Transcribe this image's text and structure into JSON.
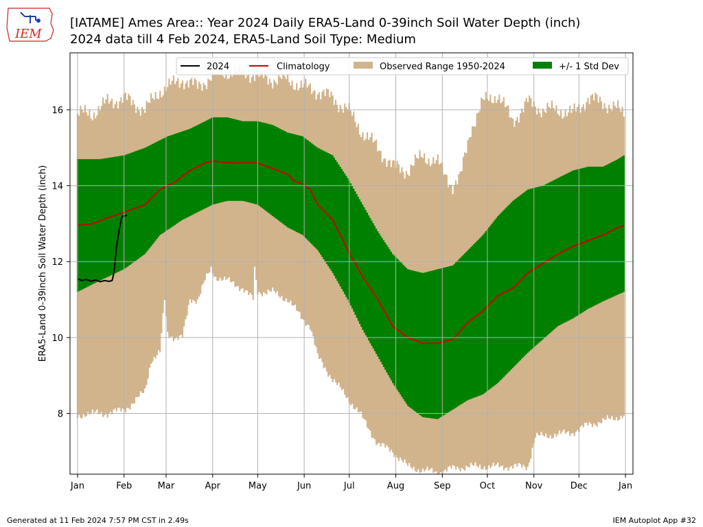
{
  "title_line1": "[IATAME] Ames Area:: Year 2024 Daily ERA5-Land 0-39inch Soil Water Depth (inch)",
  "title_line2": "2024 data till 4 Feb 2024, ERA5-Land Soil Type: Medium",
  "footer_left": "Generated at 11 Feb 2024 7:57 PM CST in 2.49s",
  "footer_right": "IEM Autoplot App #32",
  "logo_text": "IEM",
  "chart_data": {
    "type": "area",
    "ylabel": "ERA5-Land 0-39inch Soil Water Depth (inch)",
    "xlim": [
      -5,
      370
    ],
    "ylim": [
      6.4,
      17.5
    ],
    "grid": true,
    "legend_placement": "top-right",
    "x_ticks": [
      {
        "day": 0,
        "label": "Jan"
      },
      {
        "day": 31,
        "label": "Feb"
      },
      {
        "day": 59,
        "label": "Mar"
      },
      {
        "day": 90,
        "label": "Apr"
      },
      {
        "day": 120,
        "label": "May"
      },
      {
        "day": 151,
        "label": "Jun"
      },
      {
        "day": 181,
        "label": "Jul"
      },
      {
        "day": 212,
        "label": "Aug"
      },
      {
        "day": 243,
        "label": "Sep"
      },
      {
        "day": 273,
        "label": "Oct"
      },
      {
        "day": 304,
        "label": "Nov"
      },
      {
        "day": 334,
        "label": "Dec"
      },
      {
        "day": 365,
        "label": "Jan"
      }
    ],
    "y_ticks": [
      8,
      10,
      12,
      14,
      16
    ],
    "legend": [
      "2024",
      "Climatology",
      "Observed Range 1950-2024",
      "+/- 1 Std Dev"
    ],
    "colors": {
      "year": "#000000",
      "climatology": "#cc0000",
      "range": "#d2b48c",
      "std": "#008000"
    },
    "range_max": [
      [
        0,
        15.9
      ],
      [
        10,
        15.9
      ],
      [
        20,
        16.2
      ],
      [
        31,
        16.3
      ],
      [
        45,
        16.0
      ],
      [
        55,
        16.5
      ],
      [
        70,
        16.8
      ],
      [
        80,
        16.6
      ],
      [
        90,
        16.9
      ],
      [
        100,
        17.0
      ],
      [
        110,
        17.0
      ],
      [
        120,
        16.9
      ],
      [
        130,
        16.8
      ],
      [
        140,
        16.8
      ],
      [
        150,
        16.6
      ],
      [
        160,
        16.5
      ],
      [
        170,
        16.3
      ],
      [
        180,
        16.0
      ],
      [
        190,
        15.4
      ],
      [
        200,
        15.0
      ],
      [
        210,
        14.5
      ],
      [
        220,
        14.4
      ],
      [
        230,
        14.8
      ],
      [
        240,
        14.6
      ],
      [
        250,
        14.0
      ],
      [
        255,
        14.2
      ],
      [
        262,
        15.5
      ],
      [
        270,
        16.2
      ],
      [
        280,
        16.4
      ],
      [
        290,
        15.7
      ],
      [
        300,
        16.2
      ],
      [
        310,
        16.0
      ],
      [
        320,
        16.0
      ],
      [
        330,
        15.9
      ],
      [
        340,
        16.3
      ],
      [
        350,
        16.2
      ],
      [
        360,
        16.0
      ],
      [
        364,
        15.9
      ]
    ],
    "std_upper": [
      [
        0,
        14.7
      ],
      [
        15,
        14.7
      ],
      [
        31,
        14.8
      ],
      [
        45,
        15.0
      ],
      [
        60,
        15.3
      ],
      [
        75,
        15.5
      ],
      [
        90,
        15.8
      ],
      [
        100,
        15.8
      ],
      [
        110,
        15.7
      ],
      [
        120,
        15.7
      ],
      [
        130,
        15.6
      ],
      [
        140,
        15.4
      ],
      [
        150,
        15.3
      ],
      [
        160,
        15.0
      ],
      [
        170,
        14.8
      ],
      [
        180,
        14.2
      ],
      [
        190,
        13.5
      ],
      [
        200,
        12.8
      ],
      [
        210,
        12.2
      ],
      [
        220,
        11.8
      ],
      [
        230,
        11.7
      ],
      [
        240,
        11.8
      ],
      [
        250,
        11.9
      ],
      [
        260,
        12.3
      ],
      [
        270,
        12.7
      ],
      [
        280,
        13.2
      ],
      [
        290,
        13.6
      ],
      [
        300,
        13.9
      ],
      [
        310,
        14.0
      ],
      [
        320,
        14.2
      ],
      [
        330,
        14.4
      ],
      [
        340,
        14.5
      ],
      [
        350,
        14.5
      ],
      [
        360,
        14.7
      ],
      [
        364,
        14.8
      ]
    ],
    "climatology": [
      [
        0,
        12.95
      ],
      [
        10,
        13.0
      ],
      [
        20,
        13.15
      ],
      [
        31,
        13.3
      ],
      [
        45,
        13.5
      ],
      [
        55,
        13.9
      ],
      [
        65,
        14.1
      ],
      [
        75,
        14.4
      ],
      [
        85,
        14.6
      ],
      [
        90,
        14.65
      ],
      [
        100,
        14.6
      ],
      [
        110,
        14.6
      ],
      [
        120,
        14.6
      ],
      [
        130,
        14.45
      ],
      [
        140,
        14.3
      ],
      [
        145,
        14.1
      ],
      [
        150,
        14.05
      ],
      [
        155,
        13.9
      ],
      [
        160,
        13.5
      ],
      [
        170,
        13.1
      ],
      [
        180,
        12.3
      ],
      [
        190,
        11.6
      ],
      [
        200,
        11.0
      ],
      [
        210,
        10.3
      ],
      [
        220,
        10.0
      ],
      [
        230,
        9.85
      ],
      [
        240,
        9.85
      ],
      [
        250,
        9.95
      ],
      [
        260,
        10.4
      ],
      [
        270,
        10.7
      ],
      [
        280,
        11.1
      ],
      [
        290,
        11.3
      ],
      [
        300,
        11.7
      ],
      [
        310,
        11.95
      ],
      [
        320,
        12.2
      ],
      [
        330,
        12.4
      ],
      [
        340,
        12.55
      ],
      [
        350,
        12.7
      ],
      [
        360,
        12.9
      ],
      [
        364,
        12.95
      ]
    ],
    "std_lower": [
      [
        0,
        11.2
      ],
      [
        15,
        11.5
      ],
      [
        31,
        11.8
      ],
      [
        45,
        12.2
      ],
      [
        55,
        12.7
      ],
      [
        70,
        13.1
      ],
      [
        80,
        13.3
      ],
      [
        90,
        13.5
      ],
      [
        100,
        13.6
      ],
      [
        110,
        13.6
      ],
      [
        120,
        13.5
      ],
      [
        130,
        13.2
      ],
      [
        140,
        12.9
      ],
      [
        150,
        12.7
      ],
      [
        160,
        12.3
      ],
      [
        170,
        11.7
      ],
      [
        180,
        11.0
      ],
      [
        190,
        10.2
      ],
      [
        200,
        9.5
      ],
      [
        210,
        8.8
      ],
      [
        220,
        8.2
      ],
      [
        230,
        7.9
      ],
      [
        240,
        7.85
      ],
      [
        250,
        8.1
      ],
      [
        260,
        8.35
      ],
      [
        270,
        8.5
      ],
      [
        280,
        8.8
      ],
      [
        290,
        9.2
      ],
      [
        300,
        9.6
      ],
      [
        310,
        9.95
      ],
      [
        320,
        10.3
      ],
      [
        330,
        10.5
      ],
      [
        340,
        10.75
      ],
      [
        350,
        10.95
      ],
      [
        364,
        11.2
      ]
    ],
    "range_min": [
      [
        0,
        7.9
      ],
      [
        5,
        8.0
      ],
      [
        20,
        8.0
      ],
      [
        31,
        8.1
      ],
      [
        38,
        8.3
      ],
      [
        45,
        8.6
      ],
      [
        49,
        9.4
      ],
      [
        55,
        9.6
      ],
      [
        58,
        11.0
      ],
      [
        60,
        10.1
      ],
      [
        65,
        10.0
      ],
      [
        70,
        10.0
      ],
      [
        75,
        11.0
      ],
      [
        80,
        11.0
      ],
      [
        85,
        11.5
      ],
      [
        89,
        11.8
      ],
      [
        92,
        11.6
      ],
      [
        100,
        11.5
      ],
      [
        110,
        11.3
      ],
      [
        117,
        11.0
      ],
      [
        118,
        11.8
      ],
      [
        120,
        11.2
      ],
      [
        130,
        11.2
      ],
      [
        140,
        11.0
      ],
      [
        150,
        10.5
      ],
      [
        155,
        10.3
      ],
      [
        160,
        9.5
      ],
      [
        170,
        8.9
      ],
      [
        180,
        8.4
      ],
      [
        188,
        8.0
      ],
      [
        194,
        7.6
      ],
      [
        200,
        7.2
      ],
      [
        210,
        7.0
      ],
      [
        215,
        6.8
      ],
      [
        220,
        6.6
      ],
      [
        230,
        6.5
      ],
      [
        240,
        6.45
      ],
      [
        250,
        6.55
      ],
      [
        260,
        6.6
      ],
      [
        270,
        6.6
      ],
      [
        280,
        6.6
      ],
      [
        290,
        6.6
      ],
      [
        300,
        6.6
      ],
      [
        305,
        7.4
      ],
      [
        310,
        7.4
      ],
      [
        320,
        7.45
      ],
      [
        330,
        7.5
      ],
      [
        340,
        7.7
      ],
      [
        350,
        7.8
      ],
      [
        360,
        7.9
      ],
      [
        364,
        7.95
      ]
    ],
    "year_2024": [
      [
        0,
        11.55
      ],
      [
        3,
        11.5
      ],
      [
        6,
        11.53
      ],
      [
        9,
        11.48
      ],
      [
        12,
        11.52
      ],
      [
        15,
        11.47
      ],
      [
        18,
        11.5
      ],
      [
        21,
        11.48
      ],
      [
        23,
        11.5
      ],
      [
        24,
        11.65
      ],
      [
        25,
        12.0
      ],
      [
        26,
        12.4
      ],
      [
        27,
        12.65
      ],
      [
        28,
        12.9
      ],
      [
        29,
        13.1
      ],
      [
        30,
        13.2
      ],
      [
        31,
        13.2
      ],
      [
        33,
        13.22
      ]
    ]
  }
}
